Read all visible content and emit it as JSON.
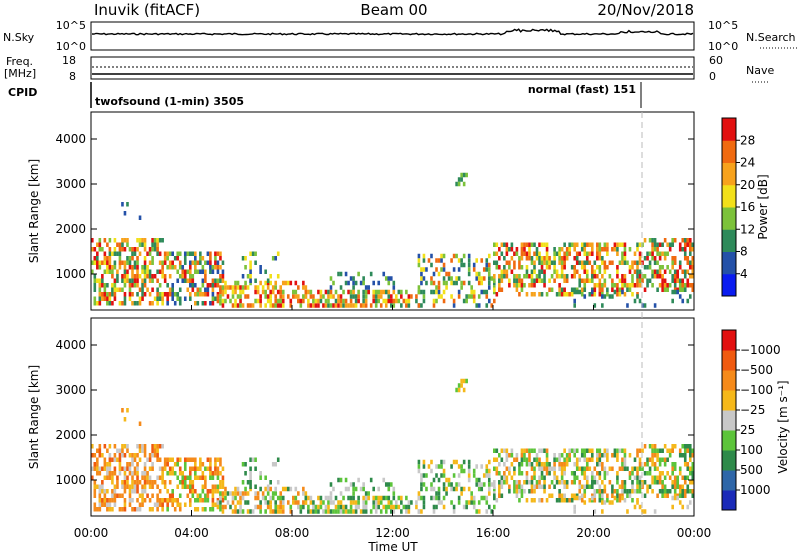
{
  "header": {
    "station": "Inuvik (fitACF)",
    "beam": "Beam 00",
    "date": "20/Nov/2018"
  },
  "noise_panel": {
    "left_label": "N.Sky",
    "right_label": "N.Search",
    "left_ticks": [
      "10^5",
      "10^0"
    ],
    "right_ticks": [
      "10^5",
      "10^0"
    ]
  },
  "freq_panel": {
    "left_label_1": "Freq.",
    "left_label_2": "[MHz]",
    "right_label": "Nave",
    "left_ticks": [
      "18",
      "8"
    ],
    "right_ticks": [
      "60",
      "0"
    ]
  },
  "cpid_panel": {
    "label": "CPID",
    "mode_1": "twofsound (1-min) 3505",
    "mode_2": "normal (fast) 151"
  },
  "chart_data": [
    {
      "type": "heatmap",
      "name": "power",
      "ylabel": "Slant Range [km]",
      "yticks": [
        1000,
        2000,
        3000,
        4000
      ],
      "ylim": [
        200,
        4600
      ],
      "xlim_hours": [
        0,
        24
      ],
      "colorbar_label": "Power [dB]",
      "colorbar_ticks": [
        "4",
        "8",
        "12",
        "16",
        "20",
        "24",
        "28"
      ],
      "colorbar_colors": [
        "#0a1cf0",
        "#2451a8",
        "#2e8a5a",
        "#7cc23a",
        "#f2e01a",
        "#f7a21c",
        "#f06a10",
        "#e21010"
      ]
    },
    {
      "type": "heatmap",
      "name": "velocity",
      "ylabel": "Slant Range [km]",
      "yticks": [
        1000,
        2000,
        3000,
        4000
      ],
      "ylim": [
        200,
        4600
      ],
      "xlim_hours": [
        0,
        24
      ],
      "colorbar_label": "Velocity [m s⁻¹]",
      "colorbar_ticks": [
        "1000",
        "500",
        "100",
        "25",
        "−25",
        "−100",
        "−500",
        "−1000"
      ],
      "colorbar_colors": [
        "#1a2ab8",
        "#2e66a8",
        "#2e8a4a",
        "#5cc43a",
        "#c8c8c8",
        "#f5b81a",
        "#f58a1a",
        "#f05a10",
        "#e21010"
      ]
    }
  ],
  "x_axis": {
    "ticks": [
      "00:00",
      "04:00",
      "08:00",
      "12:00",
      "16:00",
      "20:00",
      "00:00"
    ],
    "label": "Time UT"
  }
}
